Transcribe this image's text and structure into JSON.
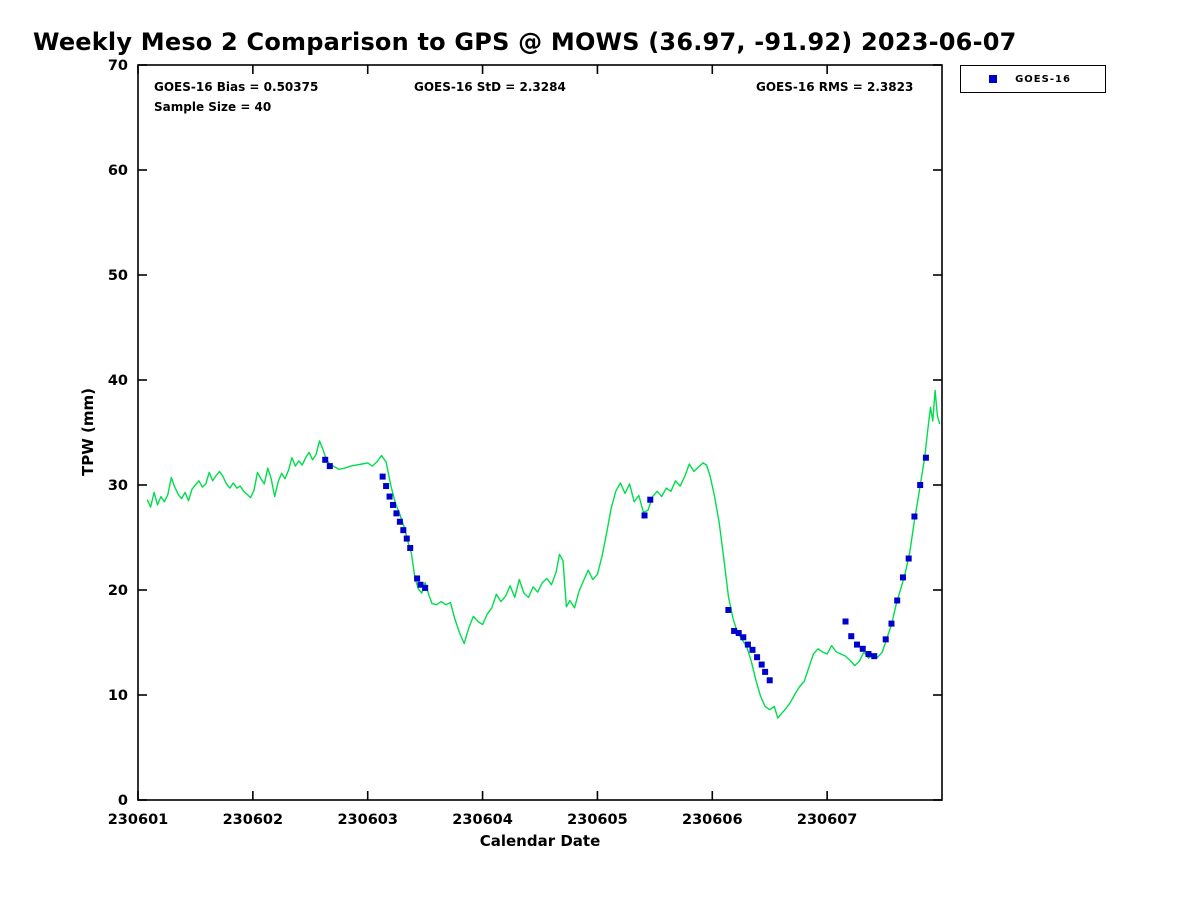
{
  "figure": {
    "title": "Weekly Meso 2 Comparison to GPS @ MOWS (36.97, -91.92) 2023-06-07"
  },
  "annotations": {
    "bias": "GOES-16 Bias = 0.50375",
    "std": "GOES-16 StD = 2.3284",
    "rms": "GOES-16 RMS = 2.3823",
    "sample_size": "Sample Size = 40"
  },
  "legend": {
    "entries": [
      {
        "label": "GOES-16",
        "marker": "square",
        "color": "#0000CC"
      }
    ]
  },
  "chart_data": {
    "type": "line",
    "title": "Weekly Meso 2 Comparison to GPS @ MOWS (36.97, -91.92) 2023-06-07",
    "xlabel": "Calendar Date",
    "ylabel": "TPW (mm)",
    "x_tick_labels": [
      "230601",
      "230602",
      "230603",
      "230604",
      "230605",
      "230606",
      "230607"
    ],
    "y_ticks": [
      0,
      10,
      20,
      30,
      40,
      50,
      60,
      70
    ],
    "ylim": [
      0,
      70
    ],
    "xlim_days": [
      0,
      7
    ],
    "x_units": "fractional days after 230601",
    "grid": false,
    "legend_position": "top-right-outside",
    "stats": {
      "bias": 0.50375,
      "std": 2.3284,
      "rms": 2.3823,
      "sample_size": 40
    },
    "series": [
      {
        "name": "GPS TPW",
        "type": "line",
        "color": "#00DD4C",
        "points": [
          [
            0.08,
            28.6
          ],
          [
            0.11,
            27.9
          ],
          [
            0.14,
            29.3
          ],
          [
            0.17,
            28.1
          ],
          [
            0.2,
            28.9
          ],
          [
            0.23,
            28.4
          ],
          [
            0.26,
            29.1
          ],
          [
            0.29,
            30.7
          ],
          [
            0.32,
            29.8
          ],
          [
            0.35,
            29.1
          ],
          [
            0.38,
            28.7
          ],
          [
            0.41,
            29.3
          ],
          [
            0.44,
            28.5
          ],
          [
            0.47,
            29.6
          ],
          [
            0.5,
            30.0
          ],
          [
            0.53,
            30.4
          ],
          [
            0.56,
            29.8
          ],
          [
            0.59,
            30.1
          ],
          [
            0.62,
            31.2
          ],
          [
            0.65,
            30.4
          ],
          [
            0.68,
            30.9
          ],
          [
            0.71,
            31.3
          ],
          [
            0.74,
            30.8
          ],
          [
            0.77,
            30.1
          ],
          [
            0.8,
            29.7
          ],
          [
            0.83,
            30.2
          ],
          [
            0.86,
            29.7
          ],
          [
            0.89,
            29.9
          ],
          [
            0.92,
            29.4
          ],
          [
            0.95,
            29.1
          ],
          [
            0.98,
            28.8
          ],
          [
            1.01,
            29.5
          ],
          [
            1.04,
            31.2
          ],
          [
            1.07,
            30.6
          ],
          [
            1.1,
            30.1
          ],
          [
            1.13,
            31.6
          ],
          [
            1.16,
            30.6
          ],
          [
            1.19,
            28.9
          ],
          [
            1.22,
            30.3
          ],
          [
            1.25,
            31.1
          ],
          [
            1.28,
            30.6
          ],
          [
            1.31,
            31.4
          ],
          [
            1.34,
            32.6
          ],
          [
            1.37,
            31.8
          ],
          [
            1.4,
            32.3
          ],
          [
            1.43,
            31.9
          ],
          [
            1.46,
            32.6
          ],
          [
            1.49,
            33.1
          ],
          [
            1.52,
            32.4
          ],
          [
            1.55,
            32.9
          ],
          [
            1.58,
            34.2
          ],
          [
            1.61,
            33.4
          ],
          [
            1.64,
            32.4
          ],
          [
            1.67,
            32.0
          ],
          [
            1.7,
            31.8
          ],
          [
            1.75,
            31.5
          ],
          [
            1.8,
            31.6
          ],
          [
            1.85,
            31.8
          ],
          [
            1.9,
            31.9
          ],
          [
            1.95,
            32.0
          ],
          [
            2.0,
            32.1
          ],
          [
            2.04,
            31.8
          ],
          [
            2.08,
            32.2
          ],
          [
            2.12,
            32.8
          ],
          [
            2.16,
            32.2
          ],
          [
            2.2,
            30.0
          ],
          [
            2.24,
            28.3
          ],
          [
            2.28,
            27.2
          ],
          [
            2.32,
            25.9
          ],
          [
            2.35,
            24.6
          ],
          [
            2.38,
            23.5
          ],
          [
            2.41,
            21.2
          ],
          [
            2.44,
            20.1
          ],
          [
            2.47,
            19.7
          ],
          [
            2.5,
            20.7
          ],
          [
            2.53,
            19.6
          ],
          [
            2.56,
            18.7
          ],
          [
            2.6,
            18.6
          ],
          [
            2.64,
            18.9
          ],
          [
            2.68,
            18.6
          ],
          [
            2.72,
            18.8
          ],
          [
            2.76,
            17.2
          ],
          [
            2.8,
            15.9
          ],
          [
            2.84,
            14.9
          ],
          [
            2.88,
            16.4
          ],
          [
            2.92,
            17.5
          ],
          [
            2.96,
            17.0
          ],
          [
            3.0,
            16.7
          ],
          [
            3.04,
            17.7
          ],
          [
            3.08,
            18.3
          ],
          [
            3.12,
            19.6
          ],
          [
            3.16,
            18.9
          ],
          [
            3.2,
            19.4
          ],
          [
            3.24,
            20.4
          ],
          [
            3.28,
            19.3
          ],
          [
            3.32,
            21.0
          ],
          [
            3.36,
            19.7
          ],
          [
            3.4,
            19.3
          ],
          [
            3.44,
            20.3
          ],
          [
            3.48,
            19.8
          ],
          [
            3.52,
            20.7
          ],
          [
            3.56,
            21.1
          ],
          [
            3.6,
            20.5
          ],
          [
            3.64,
            21.7
          ],
          [
            3.67,
            23.4
          ],
          [
            3.7,
            22.8
          ],
          [
            3.73,
            18.4
          ],
          [
            3.76,
            19.0
          ],
          [
            3.8,
            18.3
          ],
          [
            3.84,
            19.9
          ],
          [
            3.88,
            20.9
          ],
          [
            3.92,
            21.9
          ],
          [
            3.96,
            21.0
          ],
          [
            4.0,
            21.5
          ],
          [
            4.04,
            23.2
          ],
          [
            4.08,
            25.4
          ],
          [
            4.12,
            27.8
          ],
          [
            4.16,
            29.4
          ],
          [
            4.2,
            30.2
          ],
          [
            4.24,
            29.2
          ],
          [
            4.28,
            30.1
          ],
          [
            4.32,
            28.4
          ],
          [
            4.36,
            29.0
          ],
          [
            4.4,
            27.4
          ],
          [
            4.44,
            27.6
          ],
          [
            4.48,
            28.9
          ],
          [
            4.52,
            29.4
          ],
          [
            4.56,
            28.9
          ],
          [
            4.6,
            29.7
          ],
          [
            4.64,
            29.4
          ],
          [
            4.68,
            30.4
          ],
          [
            4.72,
            29.9
          ],
          [
            4.76,
            30.8
          ],
          [
            4.8,
            32.0
          ],
          [
            4.84,
            31.3
          ],
          [
            4.88,
            31.7
          ],
          [
            4.92,
            32.1
          ],
          [
            4.95,
            31.9
          ],
          [
            4.98,
            30.9
          ],
          [
            5.02,
            28.9
          ],
          [
            5.06,
            26.4
          ],
          [
            5.1,
            23.0
          ],
          [
            5.14,
            19.4
          ],
          [
            5.18,
            17.3
          ],
          [
            5.22,
            15.9
          ],
          [
            5.26,
            15.3
          ],
          [
            5.3,
            14.6
          ],
          [
            5.34,
            13.2
          ],
          [
            5.38,
            11.4
          ],
          [
            5.42,
            9.9
          ],
          [
            5.46,
            8.9
          ],
          [
            5.5,
            8.6
          ],
          [
            5.54,
            8.9
          ],
          [
            5.57,
            7.8
          ],
          [
            5.6,
            8.2
          ],
          [
            5.64,
            8.7
          ],
          [
            5.68,
            9.3
          ],
          [
            5.72,
            10.1
          ],
          [
            5.76,
            10.8
          ],
          [
            5.8,
            11.3
          ],
          [
            5.84,
            12.6
          ],
          [
            5.88,
            13.9
          ],
          [
            5.92,
            14.4
          ],
          [
            5.96,
            14.1
          ],
          [
            6.0,
            13.9
          ],
          [
            6.04,
            14.7
          ],
          [
            6.08,
            14.1
          ],
          [
            6.12,
            13.9
          ],
          [
            6.16,
            13.7
          ],
          [
            6.2,
            13.3
          ],
          [
            6.24,
            12.8
          ],
          [
            6.28,
            13.2
          ],
          [
            6.32,
            14.1
          ],
          [
            6.36,
            13.5
          ],
          [
            6.4,
            13.8
          ],
          [
            6.44,
            13.6
          ],
          [
            6.48,
            14.1
          ],
          [
            6.52,
            15.4
          ],
          [
            6.56,
            16.7
          ],
          [
            6.6,
            18.6
          ],
          [
            6.64,
            20.1
          ],
          [
            6.68,
            21.6
          ],
          [
            6.72,
            23.6
          ],
          [
            6.76,
            26.6
          ],
          [
            6.79,
            28.6
          ],
          [
            6.82,
            30.6
          ],
          [
            6.85,
            32.7
          ],
          [
            6.88,
            35.6
          ],
          [
            6.9,
            37.4
          ],
          [
            6.92,
            36.1
          ],
          [
            6.94,
            39.0
          ],
          [
            6.96,
            36.6
          ],
          [
            6.98,
            35.8
          ]
        ]
      },
      {
        "name": "GOES-16",
        "type": "scatter",
        "marker": "square",
        "color": "#0000CC",
        "points": [
          [
            1.63,
            32.4
          ],
          [
            1.67,
            31.8
          ],
          [
            2.13,
            30.8
          ],
          [
            2.16,
            29.9
          ],
          [
            2.19,
            28.9
          ],
          [
            2.22,
            28.1
          ],
          [
            2.25,
            27.3
          ],
          [
            2.28,
            26.5
          ],
          [
            2.31,
            25.7
          ],
          [
            2.34,
            24.9
          ],
          [
            2.37,
            24.0
          ],
          [
            2.43,
            21.1
          ],
          [
            2.46,
            20.5
          ],
          [
            2.5,
            20.2
          ],
          [
            4.41,
            27.1
          ],
          [
            4.46,
            28.6
          ],
          [
            5.14,
            18.1
          ],
          [
            5.19,
            16.1
          ],
          [
            5.23,
            15.9
          ],
          [
            5.27,
            15.5
          ],
          [
            5.31,
            14.8
          ],
          [
            5.35,
            14.3
          ],
          [
            5.39,
            13.6
          ],
          [
            5.43,
            12.9
          ],
          [
            5.46,
            12.2
          ],
          [
            5.5,
            11.4
          ],
          [
            6.16,
            17.0
          ],
          [
            6.21,
            15.6
          ],
          [
            6.26,
            14.8
          ],
          [
            6.31,
            14.4
          ],
          [
            6.36,
            13.9
          ],
          [
            6.41,
            13.7
          ],
          [
            6.51,
            15.3
          ],
          [
            6.56,
            16.8
          ],
          [
            6.61,
            19.0
          ],
          [
            6.66,
            21.2
          ],
          [
            6.71,
            23.0
          ],
          [
            6.76,
            27.0
          ],
          [
            6.81,
            30.0
          ],
          [
            6.86,
            32.6
          ]
        ]
      }
    ]
  }
}
